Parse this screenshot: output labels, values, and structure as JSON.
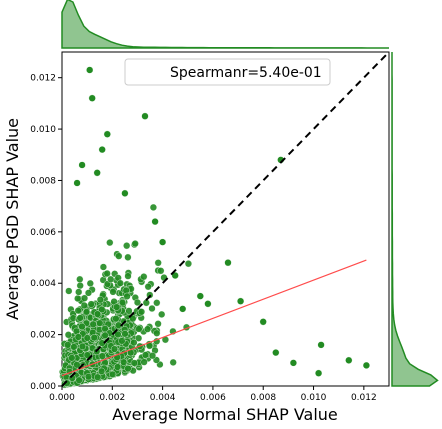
{
  "chart_data": {
    "type": "scatter",
    "xlabel": "Average Normal SHAP Value",
    "ylabel": "Average PGD SHAP Value",
    "xlim": [
      0,
      0.013
    ],
    "ylim": [
      0,
      0.013
    ],
    "x_ticks": [
      "0.000",
      "0.002",
      "0.004",
      "0.006",
      "0.008",
      "0.010",
      "0.012"
    ],
    "y_ticks": [
      "0.000",
      "0.002",
      "0.004",
      "0.006",
      "0.008",
      "0.010",
      "0.012"
    ],
    "x_tick_values": [
      0,
      0.002,
      0.004,
      0.006,
      0.008,
      0.01,
      0.012
    ],
    "y_tick_values": [
      0,
      0.002,
      0.004,
      0.006,
      0.008,
      0.01,
      0.012
    ],
    "legend": {
      "label": "Spearmanr=5.40e-01",
      "placement": "top-right"
    },
    "point_color": "#228B22",
    "point_edge_color": "#ffffff",
    "fit_line_color": "#ff4c4c",
    "diagonal_line_color": "#000000",
    "marginal_color": "#228B22",
    "fit_line": {
      "x": [
        0.0,
        0.0121
      ],
      "y": [
        0.0004,
        0.0049
      ]
    },
    "diagonal_line": {
      "x": [
        0.0,
        0.013
      ],
      "y": [
        0.0,
        0.013
      ]
    },
    "highlighted_points": [
      {
        "x": 0.0011,
        "y": 0.0123
      },
      {
        "x": 0.0012,
        "y": 0.0112
      },
      {
        "x": 0.0033,
        "y": 0.0105
      },
      {
        "x": 0.0018,
        "y": 0.0098
      },
      {
        "x": 0.0016,
        "y": 0.0092
      },
      {
        "x": 0.0087,
        "y": 0.0088
      },
      {
        "x": 0.0008,
        "y": 0.0086
      },
      {
        "x": 0.0014,
        "y": 0.0083
      },
      {
        "x": 0.0006,
        "y": 0.0079
      },
      {
        "x": 0.0025,
        "y": 0.0075
      },
      {
        "x": 0.0037,
        "y": 0.0064
      },
      {
        "x": 0.0066,
        "y": 0.0048
      },
      {
        "x": 0.0103,
        "y": 0.0016
      },
      {
        "x": 0.0102,
        "y": 0.0005
      },
      {
        "x": 0.0114,
        "y": 0.001
      },
      {
        "x": 0.0121,
        "y": 0.0008
      },
      {
        "x": 0.0092,
        "y": 0.0009
      },
      {
        "x": 0.0085,
        "y": 0.0013
      },
      {
        "x": 0.008,
        "y": 0.0025
      },
      {
        "x": 0.0071,
        "y": 0.0033
      },
      {
        "x": 0.0058,
        "y": 0.0032
      },
      {
        "x": 0.0055,
        "y": 0.0035
      },
      {
        "x": 0.0048,
        "y": 0.003
      },
      {
        "x": 0.0045,
        "y": 0.0043
      },
      {
        "x": 0.004,
        "y": 0.0056
      }
    ],
    "cluster": {
      "description_free": true,
      "x_center": 0.0015,
      "y_center": 0.0018,
      "count": 1400
    }
  }
}
